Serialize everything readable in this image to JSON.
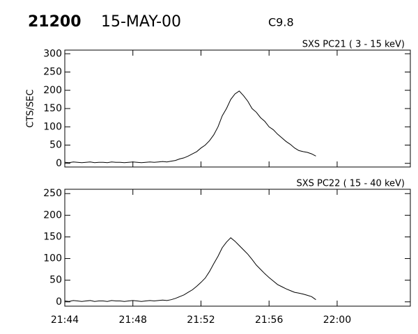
{
  "header": {
    "id": "21200",
    "date": "15-MAY-00",
    "class": "C9.8"
  },
  "chart_data": [
    {
      "type": "line",
      "title": "SXS PC21  (  3 - 15 keV)",
      "y_label": "CTS/SEC",
      "color": "#000000",
      "x": [
        1304,
        1304.25,
        1304.5,
        1304.75,
        1305,
        1305.25,
        1305.5,
        1305.75,
        1306,
        1306.25,
        1306.5,
        1306.75,
        1307,
        1307.25,
        1307.5,
        1307.75,
        1308,
        1308.25,
        1308.5,
        1308.75,
        1309,
        1309.25,
        1309.5,
        1309.75,
        1310,
        1310.25,
        1310.5,
        1310.75,
        1311,
        1311.25,
        1311.5,
        1311.75,
        1312,
        1312.25,
        1312.5,
        1312.75,
        1313,
        1313.25,
        1313.5,
        1313.75,
        1314,
        1314.25,
        1314.5,
        1314.75,
        1315,
        1315.25,
        1315.5,
        1315.75,
        1316,
        1316.25,
        1316.5,
        1316.75,
        1317,
        1317.25,
        1317.5,
        1317.75,
        1318,
        1318.25,
        1318.5,
        1318.75
      ],
      "values": [
        3,
        2,
        4,
        3,
        2,
        3,
        4,
        2,
        3,
        3,
        2,
        4,
        3,
        3,
        2,
        3,
        4,
        3,
        2,
        3,
        4,
        3,
        4,
        5,
        4,
        6,
        8,
        12,
        15,
        20,
        26,
        32,
        42,
        50,
        62,
        78,
        100,
        130,
        150,
        175,
        190,
        198,
        185,
        170,
        150,
        140,
        125,
        115,
        100,
        92,
        80,
        70,
        60,
        52,
        42,
        35,
        32,
        30,
        26,
        20
      ],
      "xlim": [
        1304,
        1324.3
      ],
      "ylim": [
        -10,
        310
      ],
      "yticks": [
        0,
        50,
        100,
        150,
        200,
        250,
        300
      ]
    },
    {
      "type": "line",
      "title": "SXS PC22  ( 15 - 40 keV)",
      "color": "#000000",
      "x": [
        1304,
        1304.25,
        1304.5,
        1304.75,
        1305,
        1305.25,
        1305.5,
        1305.75,
        1306,
        1306.25,
        1306.5,
        1306.75,
        1307,
        1307.25,
        1307.5,
        1307.75,
        1308,
        1308.25,
        1308.5,
        1308.75,
        1309,
        1309.25,
        1309.5,
        1309.75,
        1310,
        1310.25,
        1310.5,
        1310.75,
        1311,
        1311.25,
        1311.5,
        1311.75,
        1312,
        1312.25,
        1312.5,
        1312.75,
        1313,
        1313.25,
        1313.5,
        1313.75,
        1314,
        1314.25,
        1314.5,
        1314.75,
        1315,
        1315.25,
        1315.5,
        1315.75,
        1316,
        1316.25,
        1316.5,
        1316.75,
        1317,
        1317.25,
        1317.5,
        1317.75,
        1318,
        1318.25,
        1318.5,
        1318.75
      ],
      "values": [
        2,
        1,
        3,
        2,
        1,
        2,
        3,
        1,
        2,
        2,
        1,
        3,
        2,
        2,
        1,
        2,
        3,
        2,
        1,
        2,
        3,
        2,
        3,
        4,
        3,
        5,
        8,
        12,
        16,
        22,
        28,
        36,
        45,
        55,
        70,
        88,
        105,
        125,
        138,
        148,
        140,
        130,
        120,
        110,
        98,
        85,
        75,
        65,
        56,
        48,
        40,
        35,
        30,
        26,
        22,
        20,
        18,
        15,
        12,
        5
      ],
      "xlim": [
        1304,
        1324.3
      ],
      "ylim": [
        -10,
        260
      ],
      "yticks": [
        0,
        50,
        100,
        150,
        200,
        250
      ],
      "xticks": [
        {
          "value": 1304,
          "label": "21:44"
        },
        {
          "value": 1308,
          "label": "21:48"
        },
        {
          "value": 1312,
          "label": "21:52"
        },
        {
          "value": 1316,
          "label": "21:56"
        },
        {
          "value": 1320,
          "label": "22:00"
        }
      ]
    }
  ]
}
